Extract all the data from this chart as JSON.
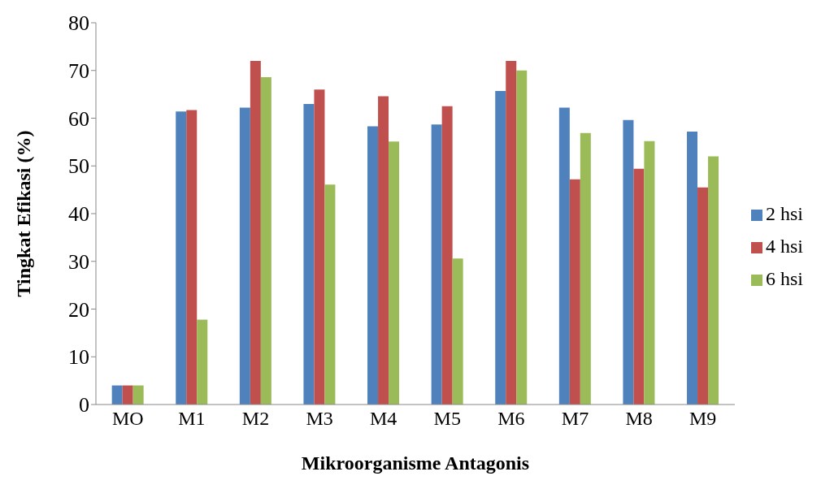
{
  "chart_data": {
    "type": "bar",
    "xlabel": "Mikroorganisme Antagonis",
    "ylabel": "Tingkat Efikasi (%)",
    "categories": [
      "MO",
      "M1",
      "M2",
      "M3",
      "M4",
      "M5",
      "M6",
      "M7",
      "M8",
      "M9"
    ],
    "series": [
      {
        "name": "2 hsi",
        "color": "#4f81bd",
        "values": [
          4,
          61.4,
          62.2,
          63.0,
          58.3,
          58.7,
          65.7,
          62.2,
          59.6,
          57.2
        ]
      },
      {
        "name": "4 hsi",
        "color": "#c0504d",
        "values": [
          4,
          61.7,
          72.0,
          66.0,
          64.6,
          62.5,
          72.0,
          47.2,
          49.4,
          45.5
        ]
      },
      {
        "name": "6 hsi",
        "color": "#9bbb59",
        "values": [
          4,
          17.8,
          68.6,
          46.1,
          55.1,
          30.6,
          70.0,
          56.9,
          55.2,
          52.0
        ]
      }
    ],
    "ylim": [
      0,
      80
    ],
    "yticks": [
      0,
      10,
      20,
      30,
      40,
      50,
      60,
      70,
      80
    ],
    "grid": false,
    "legend": "right"
  }
}
